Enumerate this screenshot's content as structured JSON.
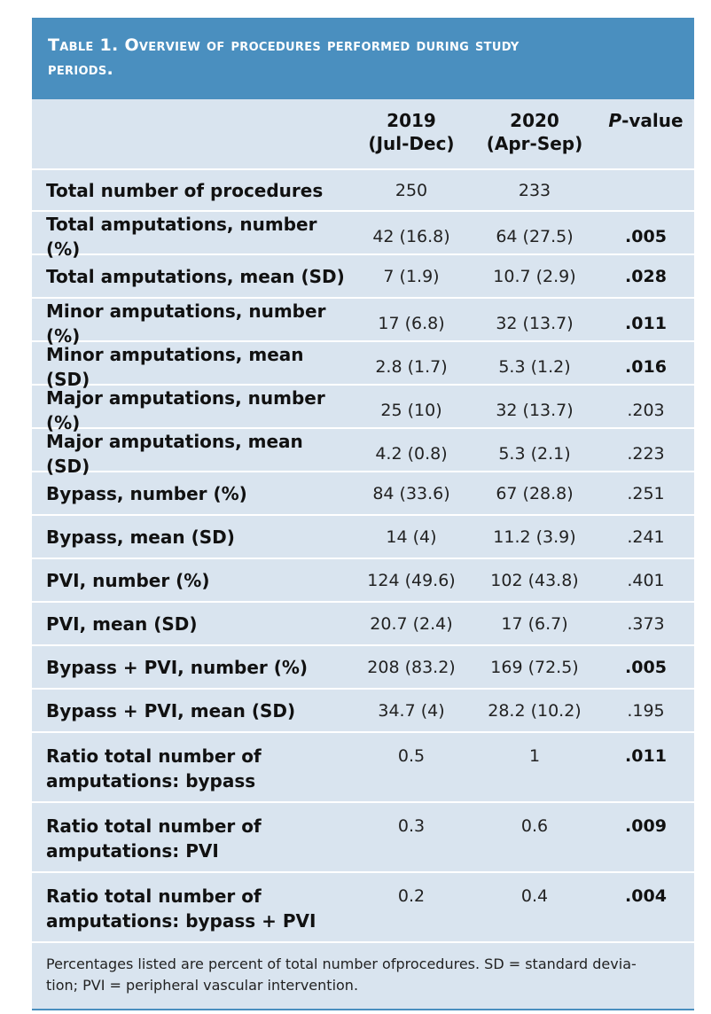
{
  "table": {
    "title_line1": "Table 1. Overview of procedures performed during study",
    "title_line2": "periods.",
    "headers": {
      "col1_line1": "2019",
      "col1_line2": "(Jul-Dec)",
      "col2_line1": "2020",
      "col2_line2": "(Apr-Sep)",
      "pvalue_italic": "P",
      "pvalue_rest": "-value"
    },
    "rows": [
      {
        "label": "Total number of procedures",
        "v2019": "250",
        "v2020": "233",
        "p": "",
        "sig": false
      },
      {
        "label": "Total amputations, number (%)",
        "v2019": "42 (16.8)",
        "v2020": "64 (27.5)",
        "p": ".005",
        "sig": true
      },
      {
        "label": "Total amputations, mean (SD)",
        "v2019": "7 (1.9)",
        "v2020": "10.7 (2.9)",
        "p": ".028",
        "sig": true
      },
      {
        "label": "Minor amputations, number (%)",
        "v2019": "17 (6.8)",
        "v2020": "32 (13.7)",
        "p": ".011",
        "sig": true
      },
      {
        "label": "Minor amputations, mean (SD)",
        "v2019": "2.8 (1.7)",
        "v2020": "5.3 (1.2)",
        "p": ".016",
        "sig": true
      },
      {
        "label": "Major amputations, number (%)",
        "v2019": "25 (10)",
        "v2020": "32 (13.7)",
        "p": ".203",
        "sig": false
      },
      {
        "label": "Major amputations, mean (SD)",
        "v2019": "4.2 (0.8)",
        "v2020": "5.3 (2.1)",
        "p": ".223",
        "sig": false
      },
      {
        "label": "Bypass, number (%)",
        "v2019": "84 (33.6)",
        "v2020": "67 (28.8)",
        "p": ".251",
        "sig": false
      },
      {
        "label": "Bypass, mean (SD)",
        "v2019": "14 (4)",
        "v2020": "11.2 (3.9)",
        "p": ".241",
        "sig": false
      },
      {
        "label": "PVI, number (%)",
        "v2019": "124 (49.6)",
        "v2020": "102 (43.8)",
        "p": ".401",
        "sig": false
      },
      {
        "label": "PVI, mean (SD)",
        "v2019": "20.7 (2.4)",
        "v2020": "17 (6.7)",
        "p": ".373",
        "sig": false
      },
      {
        "label": "Bypass + PVI, number (%)",
        "v2019": "208 (83.2)",
        "v2020": "169 (72.5)",
        "p": ".005",
        "sig": true
      },
      {
        "label": "Bypass + PVI, mean (SD)",
        "v2019": "34.7 (4)",
        "v2020": "28.2 (10.2)",
        "p": ".195",
        "sig": false
      }
    ],
    "ratio_rows": [
      {
        "label_line1": "Ratio total number of",
        "label_line2": "amputations: bypass",
        "v2019": "0.5",
        "v2020": "1",
        "p": ".011",
        "sig": true
      },
      {
        "label_line1": "Ratio total number of",
        "label_line2": "amputations: PVI",
        "v2019": "0.3",
        "v2020": "0.6",
        "p": ".009",
        "sig": true
      },
      {
        "label_line1": "Ratio total number of",
        "label_line2": "amputations: bypass + PVI",
        "v2019": "0.2",
        "v2020": "0.4",
        "p": ".004",
        "sig": true
      }
    ],
    "footnote_line1": "Percentages listed are percent of total number ofprocedures. SD = standard devia-",
    "footnote_line2": "tion; PVI = peripheral vascular intervention."
  }
}
